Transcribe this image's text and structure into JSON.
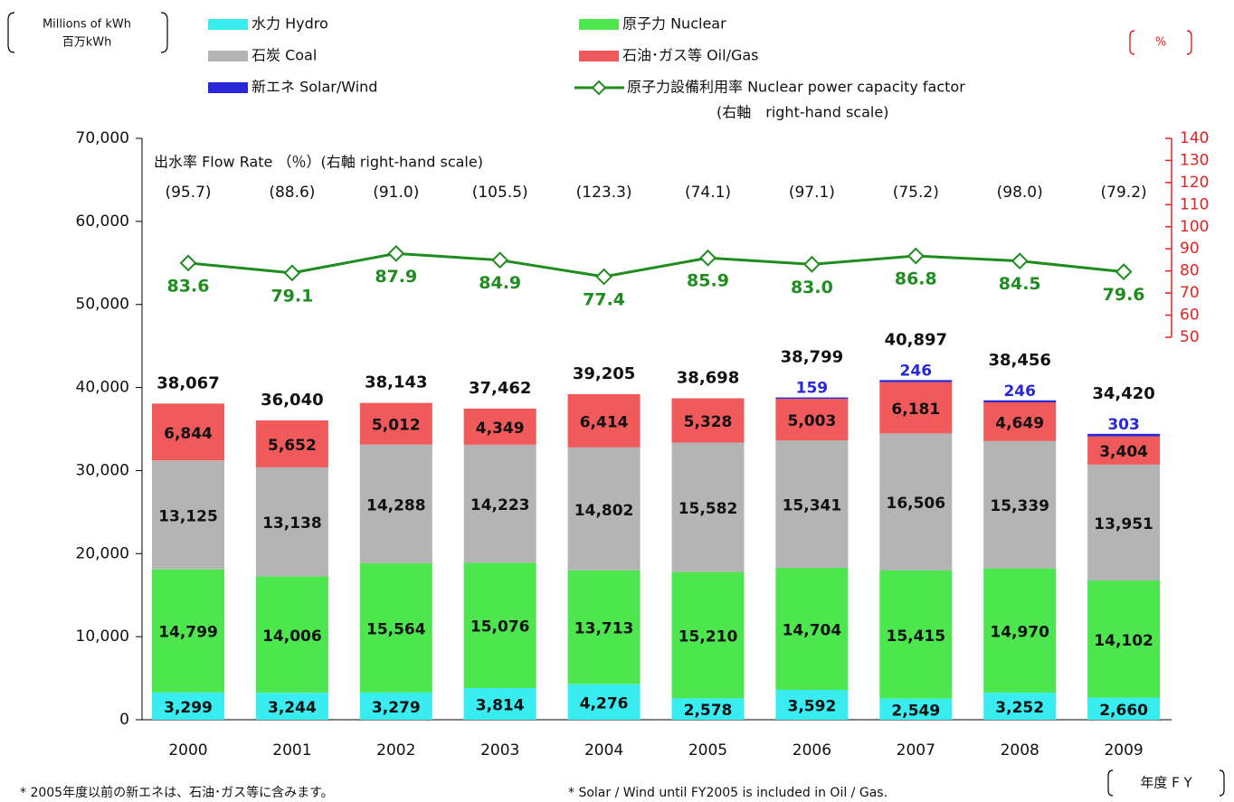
{
  "chart_data": {
    "type": "bar",
    "y_unit_label": [
      "Millions of kWh",
      "百万kWh"
    ],
    "y2_unit_label": "%",
    "x_unit_label": "年度 F Y",
    "categories": [
      "2000",
      "2001",
      "2002",
      "2003",
      "2004",
      "2005",
      "2006",
      "2007",
      "2008",
      "2009"
    ],
    "series": [
      {
        "name": "水力 Hydro",
        "color": "#38ecf0",
        "values": [
          3299,
          3244,
          3279,
          3814,
          4276,
          2578,
          3592,
          2549,
          3252,
          2660
        ],
        "value_labels": [
          "3,299",
          "3,244",
          "3,279",
          "3,814",
          "4,276",
          "2,578",
          "3,592",
          "2,549",
          "3,252",
          "2,660"
        ]
      },
      {
        "name": "原子力 Nuclear",
        "color": "#4ee64e",
        "values": [
          14799,
          14006,
          15564,
          15076,
          13713,
          15210,
          14704,
          15415,
          14970,
          14102
        ],
        "value_labels": [
          "14,799",
          "14,006",
          "15,564",
          "15,076",
          "13,713",
          "15,210",
          "14,704",
          "15,415",
          "14,970",
          "14,102"
        ]
      },
      {
        "name": "石炭 Coal",
        "color": "#b4b4b4",
        "values": [
          13125,
          13138,
          14288,
          14223,
          14802,
          15582,
          15341,
          16506,
          15339,
          13951
        ],
        "value_labels": [
          "13,125",
          "13,138",
          "14,288",
          "14,223",
          "14,802",
          "15,582",
          "15,341",
          "16,506",
          "15,339",
          "13,951"
        ]
      },
      {
        "name": "石油･ガス等 Oil/Gas",
        "color": "#f05a5a",
        "values": [
          6844,
          5652,
          5012,
          4349,
          6414,
          5328,
          5003,
          6181,
          4649,
          3404
        ],
        "value_labels": [
          "6,844",
          "5,652",
          "5,012",
          "4,349",
          "6,414",
          "5,328",
          "5,003",
          "6,181",
          "4,649",
          "3,404"
        ]
      },
      {
        "name": "新エネ Solar/Wind",
        "color": "#2828d8",
        "values": [
          null,
          null,
          null,
          null,
          null,
          null,
          159,
          246,
          246,
          303
        ],
        "value_labels": [
          null,
          null,
          null,
          null,
          null,
          null,
          "159",
          "246",
          "246",
          "303"
        ]
      },
      {
        "name": "原子力設備利用率 Nuclear power capacity factor",
        "note": "(右軸　right-hand scale)",
        "type": "line",
        "axis": "y2",
        "color": "#1e8c1e",
        "values": [
          83.6,
          79.1,
          87.9,
          84.9,
          77.4,
          85.9,
          83.0,
          86.8,
          84.5,
          79.6
        ],
        "value_labels": [
          "83.6",
          "79.1",
          "87.9",
          "84.9",
          "77.4",
          "85.9",
          "83.0",
          "86.8",
          "84.5",
          "79.6"
        ]
      }
    ],
    "totals": {
      "values": [
        38067,
        36040,
        38143,
        37462,
        39205,
        38698,
        38799,
        40897,
        38456,
        34420
      ],
      "value_labels": [
        "38,067",
        "36,040",
        "38,143",
        "37,462",
        "39,205",
        "38,698",
        "38,799",
        "40,897",
        "38,456",
        "34,420"
      ]
    },
    "flow_rate": {
      "label": "出水率 Flow Rate （％）(右軸 right-hand scale)",
      "values": [
        95.7,
        88.6,
        91.0,
        105.5,
        123.3,
        74.1,
        97.1,
        75.2,
        98.0,
        79.2
      ],
      "value_labels": [
        "(95.7)",
        "(88.6)",
        "(91.0)",
        "(105.5)",
        "(123.3)",
        "(74.1)",
        "(97.1)",
        "(75.2)",
        "(98.0)",
        "(79.2)"
      ]
    },
    "ylim": [
      0,
      70000
    ],
    "yticks": [
      0,
      {
        "value": 10000,
        "label": "10,000"
      },
      {
        "value": 20000,
        "label": "20,000"
      },
      {
        "value": 30000,
        "label": "30,000"
      },
      {
        "value": 40000,
        "label": "40,000"
      },
      {
        "value": 50000,
        "label": "50,000"
      },
      {
        "value": 60000,
        "label": "60,000"
      },
      {
        "value": 70000,
        "label": "70,000"
      }
    ],
    "y2lim": [
      50,
      140
    ],
    "y2ticks": [
      50,
      60,
      70,
      80,
      90,
      100,
      110,
      120,
      130,
      140
    ],
    "y2_color": "#e82020",
    "footnotes": [
      "* 2005年度以前の新エネは、石油･ガス等に含みます。",
      "* Solar / Wind until FY2005 is included in Oil / Gas."
    ]
  }
}
